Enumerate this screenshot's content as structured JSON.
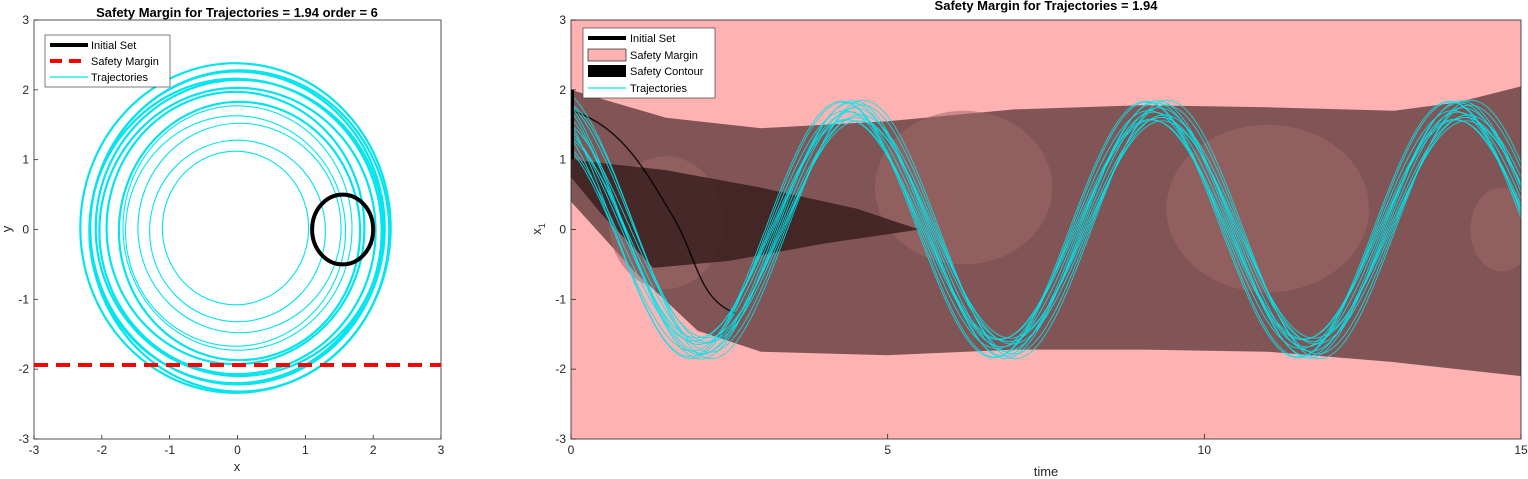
{
  "chart_data": [
    {
      "type": "line",
      "title": "Safety Margin for Trajectories = 1.94 order = 6",
      "xlabel": "x",
      "ylabel": "y",
      "xlim": [
        -3,
        3
      ],
      "ylim": [
        -3,
        3
      ],
      "xticks": [
        "-3",
        "-2",
        "-1",
        "0",
        "1",
        "2",
        "3"
      ],
      "yticks": [
        "3",
        "2",
        "1",
        "0",
        "-1",
        "-2",
        "-3"
      ],
      "safety_margin_y": -1.94,
      "initial_set": {
        "center": [
          1.55,
          0.0
        ],
        "radius_x": 0.45,
        "radius_y": 0.5
      },
      "trajectory_radii": [
        1.1,
        1.3,
        1.5,
        1.65,
        1.75,
        1.85,
        1.95,
        2.05,
        2.12,
        2.18,
        2.24,
        2.3,
        2.36
      ],
      "trajectory_center": [
        0.0,
        0.0
      ],
      "legend": [
        "Initial Set",
        "Safety Margin",
        "Trajectories"
      ],
      "legend_position": "top-left",
      "colors": {
        "initial_set": "#000000",
        "safety_margin": "#ff0000",
        "trajectories": "#00e5ee"
      }
    },
    {
      "type": "area",
      "title": "Safety Margin for Trajectories = 1.94",
      "xlabel": "time",
      "ylabel": "x",
      "ylabel_sub": "1",
      "xlim": [
        0,
        15
      ],
      "ylim": [
        -3,
        3
      ],
      "xticks": [
        "0",
        "5",
        "10",
        "15"
      ],
      "yticks": [
        "3",
        "2",
        "1",
        "0",
        "-1",
        "-2",
        "-3"
      ],
      "safety_margin_level": 1.94,
      "band_upper": [
        [
          0,
          2.0
        ],
        [
          1.5,
          1.6
        ],
        [
          3,
          1.45
        ],
        [
          5,
          1.55
        ],
        [
          7,
          1.72
        ],
        [
          9,
          1.78
        ],
        [
          11,
          1.75
        ],
        [
          13,
          1.7
        ],
        [
          14,
          1.82
        ],
        [
          15,
          2.05
        ]
      ],
      "band_lower": [
        [
          0,
          0.4
        ],
        [
          1,
          -0.6
        ],
        [
          2,
          -1.45
        ],
        [
          3,
          -1.75
        ],
        [
          5,
          -1.8
        ],
        [
          7,
          -1.72
        ],
        [
          9,
          -1.72
        ],
        [
          11,
          -1.75
        ],
        [
          13,
          -1.9
        ],
        [
          15,
          -2.1
        ]
      ],
      "trajectory_amplitude": 1.85,
      "trajectory_period": 4.8,
      "trajectory_count": 14,
      "legend": [
        "Initial Set",
        "Safety Margin",
        "Safety Contour",
        "Trajectories"
      ],
      "legend_position": "top-left",
      "colors": {
        "margin_fill": "#ffb2b2",
        "band": "#7a5050",
        "contour": "#000000",
        "trajectories": "#00e5ee"
      }
    }
  ]
}
